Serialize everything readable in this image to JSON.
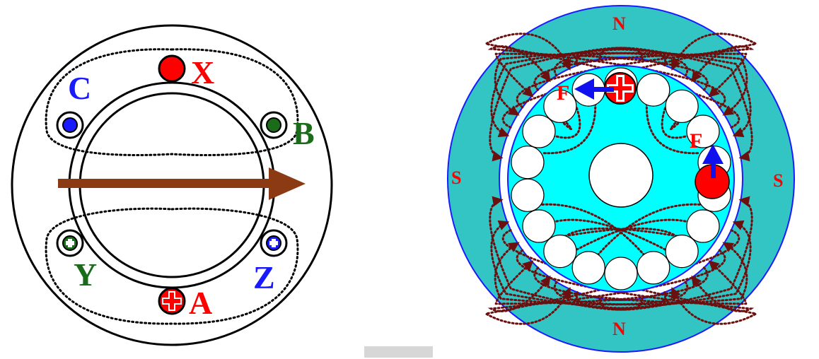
{
  "colors": {
    "background": "#ffffff",
    "outline": "#000000",
    "field_line": "#6b0f0f",
    "flux_arrow": "#8b3a14",
    "teal_yoke": "#33c4c4",
    "cyan_rotor": "#00ffff",
    "ring_blue": "#1a1aff",
    "pole_red": "#ff0000",
    "phase_A_X_red": "#ff0000",
    "phase_B_Y_green": "#1a6b1a",
    "phase_C_Z_blue": "#1a1aff",
    "force_arrow_blue": "#1010ee"
  },
  "left_diagram": {
    "terminals": {
      "A": "A",
      "B": "B",
      "C": "C",
      "X": "X",
      "Y": "Y",
      "Z": "Z"
    }
  },
  "right_diagram": {
    "poles": {
      "top": "N",
      "bottom": "N",
      "left": "S",
      "right": "S"
    },
    "force_labels": {
      "top": "F",
      "right": "F"
    }
  },
  "icons": {
    "current_into_page": "plus-circle-icon",
    "current_out_of_page": "dot-circle-icon"
  }
}
